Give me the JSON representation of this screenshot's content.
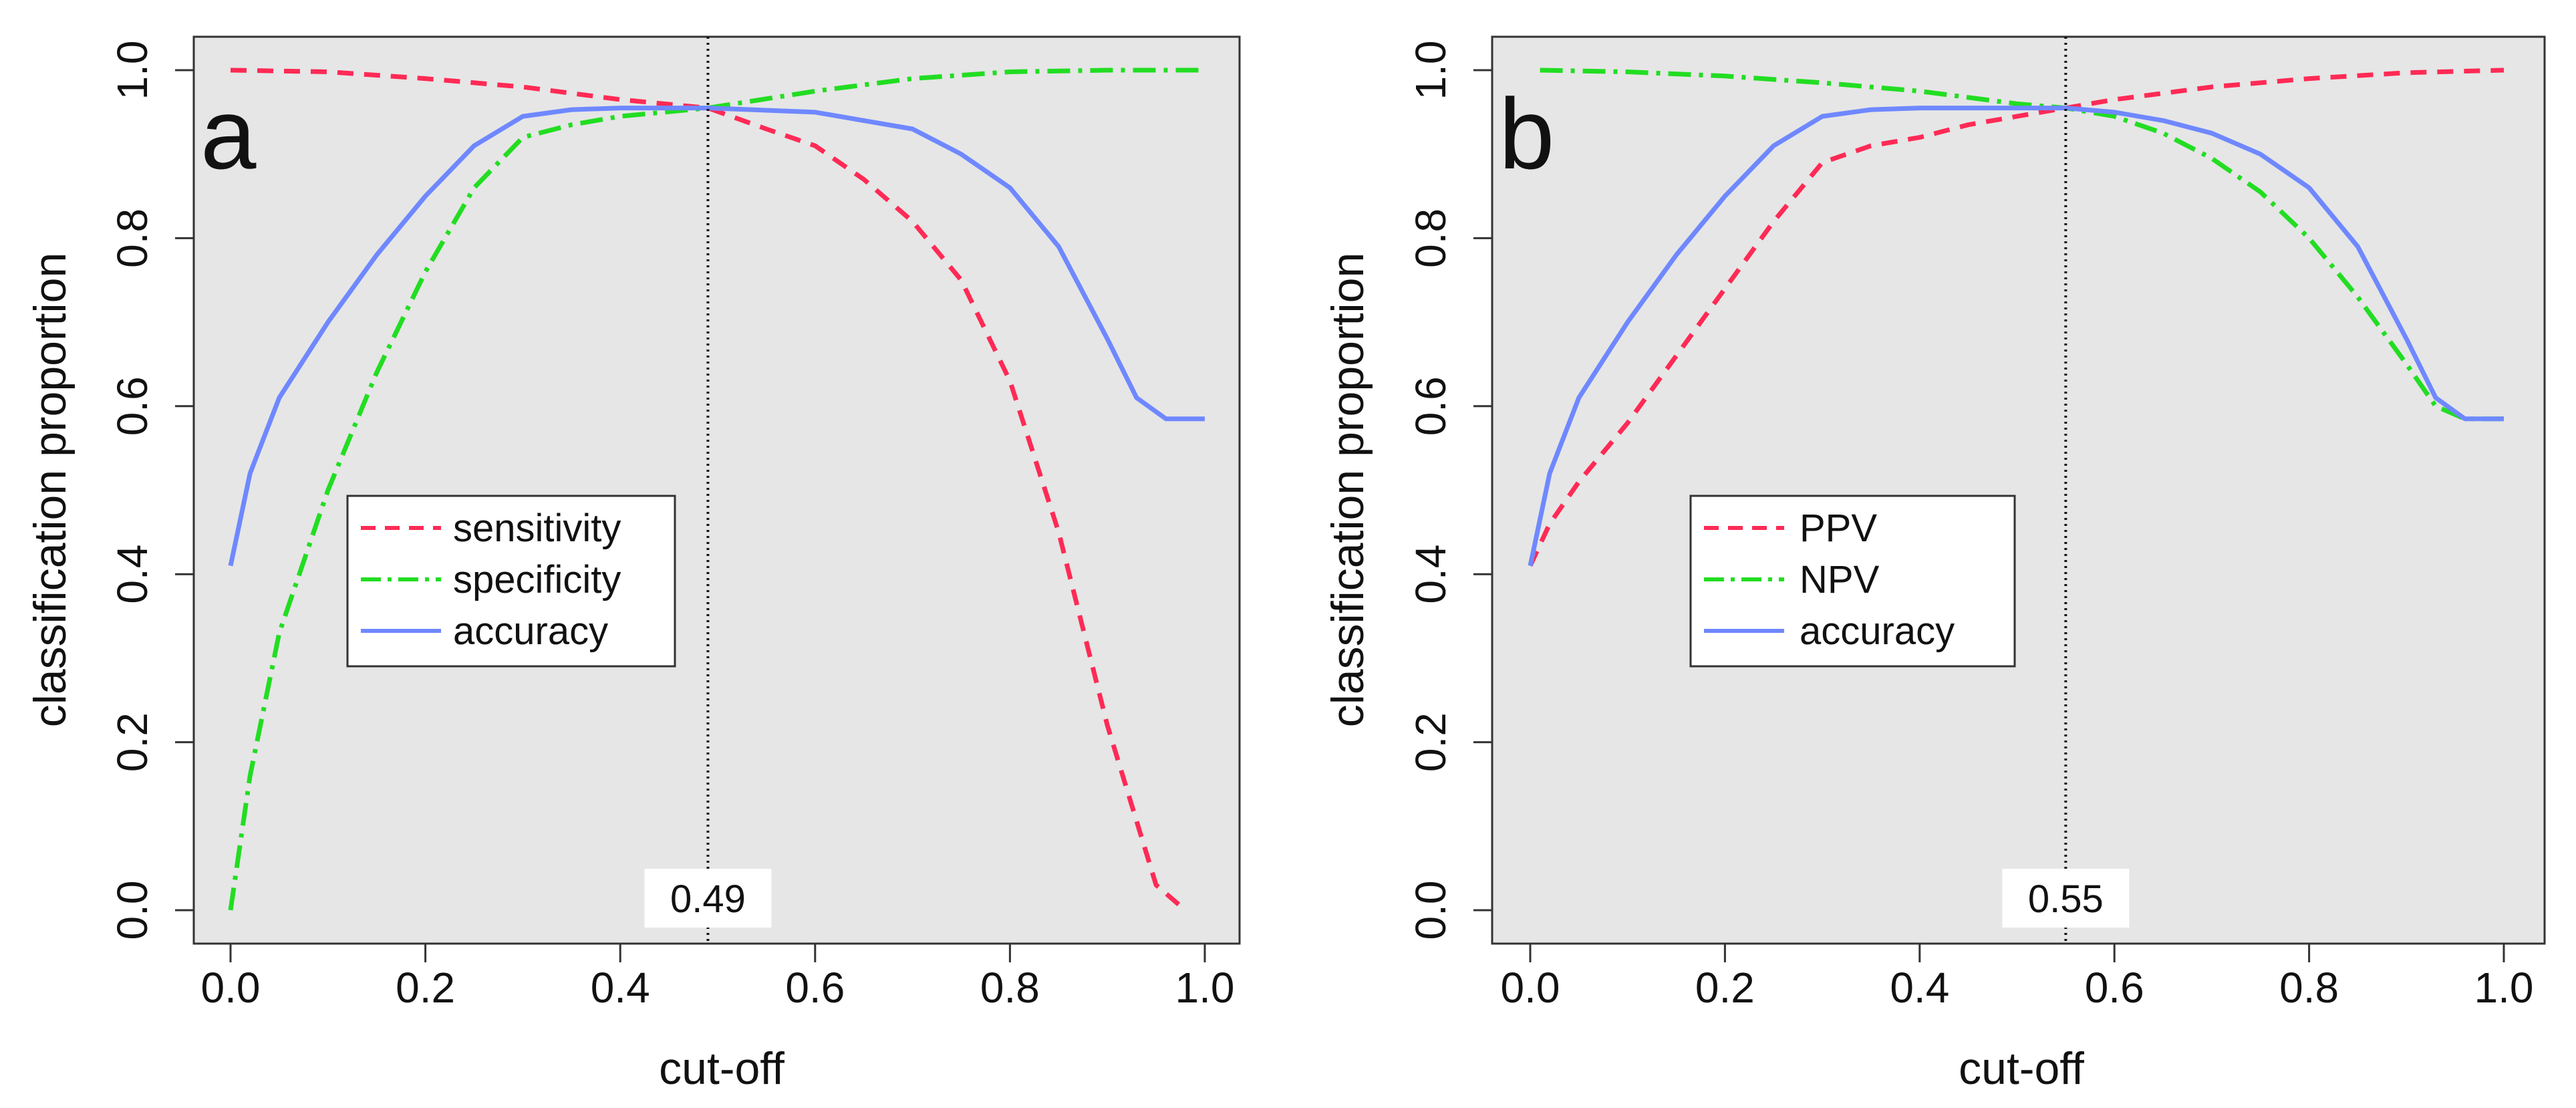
{
  "chart_data": [
    {
      "type": "line",
      "panel_label": "a",
      "xlabel": "cut-off",
      "ylabel": "classification proportion",
      "xlim": [
        0,
        1
      ],
      "ylim": [
        0,
        1
      ],
      "x_ticks": [
        "0.0",
        "0.2",
        "0.4",
        "0.6",
        "0.8",
        "1.0"
      ],
      "y_ticks": [
        "0.0",
        "0.2",
        "0.4",
        "0.6",
        "0.8",
        "1.0"
      ],
      "background": "#e6e6e6",
      "grid": false,
      "legend_position": "center-left",
      "cutoff": {
        "value": 0.49,
        "label": "0.49"
      },
      "series": [
        {
          "name": "sensitivity",
          "color": "#ff2a55",
          "dash": "dashed",
          "x": [
            0.0,
            0.1,
            0.2,
            0.3,
            0.4,
            0.49,
            0.55,
            0.6,
            0.65,
            0.7,
            0.75,
            0.8,
            0.85,
            0.9,
            0.95,
            0.98
          ],
          "y": [
            1.0,
            0.998,
            0.99,
            0.98,
            0.965,
            0.955,
            0.93,
            0.91,
            0.87,
            0.82,
            0.75,
            0.63,
            0.45,
            0.22,
            0.03,
            0.0
          ]
        },
        {
          "name": "specificity",
          "color": "#22dd22",
          "dash": "dashdot",
          "x": [
            0.0,
            0.02,
            0.05,
            0.1,
            0.15,
            0.2,
            0.25,
            0.3,
            0.35,
            0.4,
            0.49,
            0.6,
            0.7,
            0.8,
            0.9,
            1.0
          ],
          "y": [
            0.0,
            0.16,
            0.33,
            0.5,
            0.64,
            0.76,
            0.86,
            0.92,
            0.935,
            0.945,
            0.955,
            0.975,
            0.99,
            0.998,
            1.0,
            1.0
          ]
        },
        {
          "name": "accuracy",
          "color": "#6f88ff",
          "dash": "solid",
          "x": [
            0.0,
            0.02,
            0.05,
            0.1,
            0.15,
            0.2,
            0.25,
            0.3,
            0.35,
            0.4,
            0.49,
            0.6,
            0.7,
            0.75,
            0.8,
            0.85,
            0.9,
            0.93,
            0.96,
            1.0
          ],
          "y": [
            0.41,
            0.52,
            0.61,
            0.7,
            0.78,
            0.85,
            0.91,
            0.945,
            0.953,
            0.955,
            0.955,
            0.95,
            0.93,
            0.9,
            0.86,
            0.79,
            0.68,
            0.61,
            0.585,
            0.585
          ]
        }
      ]
    },
    {
      "type": "line",
      "panel_label": "b",
      "xlabel": "cut-off",
      "ylabel": "classification proportion",
      "xlim": [
        0,
        1
      ],
      "ylim": [
        0,
        1
      ],
      "x_ticks": [
        "0.0",
        "0.2",
        "0.4",
        "0.6",
        "0.8",
        "1.0"
      ],
      "y_ticks": [
        "0.0",
        "0.2",
        "0.4",
        "0.6",
        "0.8",
        "1.0"
      ],
      "background": "#e6e6e6",
      "grid": false,
      "legend_position": "center-left",
      "cutoff": {
        "value": 0.55,
        "label": "0.55"
      },
      "series": [
        {
          "name": "PPV",
          "color": "#ff2a55",
          "dash": "dashed",
          "x": [
            0.0,
            0.02,
            0.05,
            0.1,
            0.15,
            0.2,
            0.25,
            0.3,
            0.35,
            0.4,
            0.45,
            0.5,
            0.55,
            0.6,
            0.7,
            0.8,
            0.9,
            1.0
          ],
          "y": [
            0.41,
            0.46,
            0.51,
            0.58,
            0.66,
            0.74,
            0.82,
            0.89,
            0.91,
            0.92,
            0.935,
            0.945,
            0.955,
            0.965,
            0.98,
            0.99,
            0.997,
            1.0
          ]
        },
        {
          "name": "NPV",
          "color": "#22dd22",
          "dash": "dashdot",
          "x": [
            0.01,
            0.1,
            0.2,
            0.3,
            0.4,
            0.5,
            0.55,
            0.6,
            0.65,
            0.7,
            0.75,
            0.8,
            0.85,
            0.9,
            0.93,
            0.96,
            1.0
          ],
          "y": [
            1.0,
            0.998,
            0.993,
            0.985,
            0.975,
            0.96,
            0.955,
            0.945,
            0.925,
            0.895,
            0.855,
            0.8,
            0.73,
            0.65,
            0.6,
            0.585,
            0.585
          ]
        },
        {
          "name": "accuracy",
          "color": "#6f88ff",
          "dash": "solid",
          "x": [
            0.0,
            0.02,
            0.05,
            0.1,
            0.15,
            0.2,
            0.25,
            0.3,
            0.35,
            0.4,
            0.5,
            0.55,
            0.6,
            0.65,
            0.7,
            0.75,
            0.8,
            0.85,
            0.9,
            0.93,
            0.96,
            1.0
          ],
          "y": [
            0.41,
            0.52,
            0.61,
            0.7,
            0.78,
            0.85,
            0.91,
            0.945,
            0.953,
            0.955,
            0.955,
            0.955,
            0.95,
            0.94,
            0.925,
            0.9,
            0.86,
            0.79,
            0.68,
            0.61,
            0.585,
            0.585
          ]
        }
      ]
    }
  ]
}
